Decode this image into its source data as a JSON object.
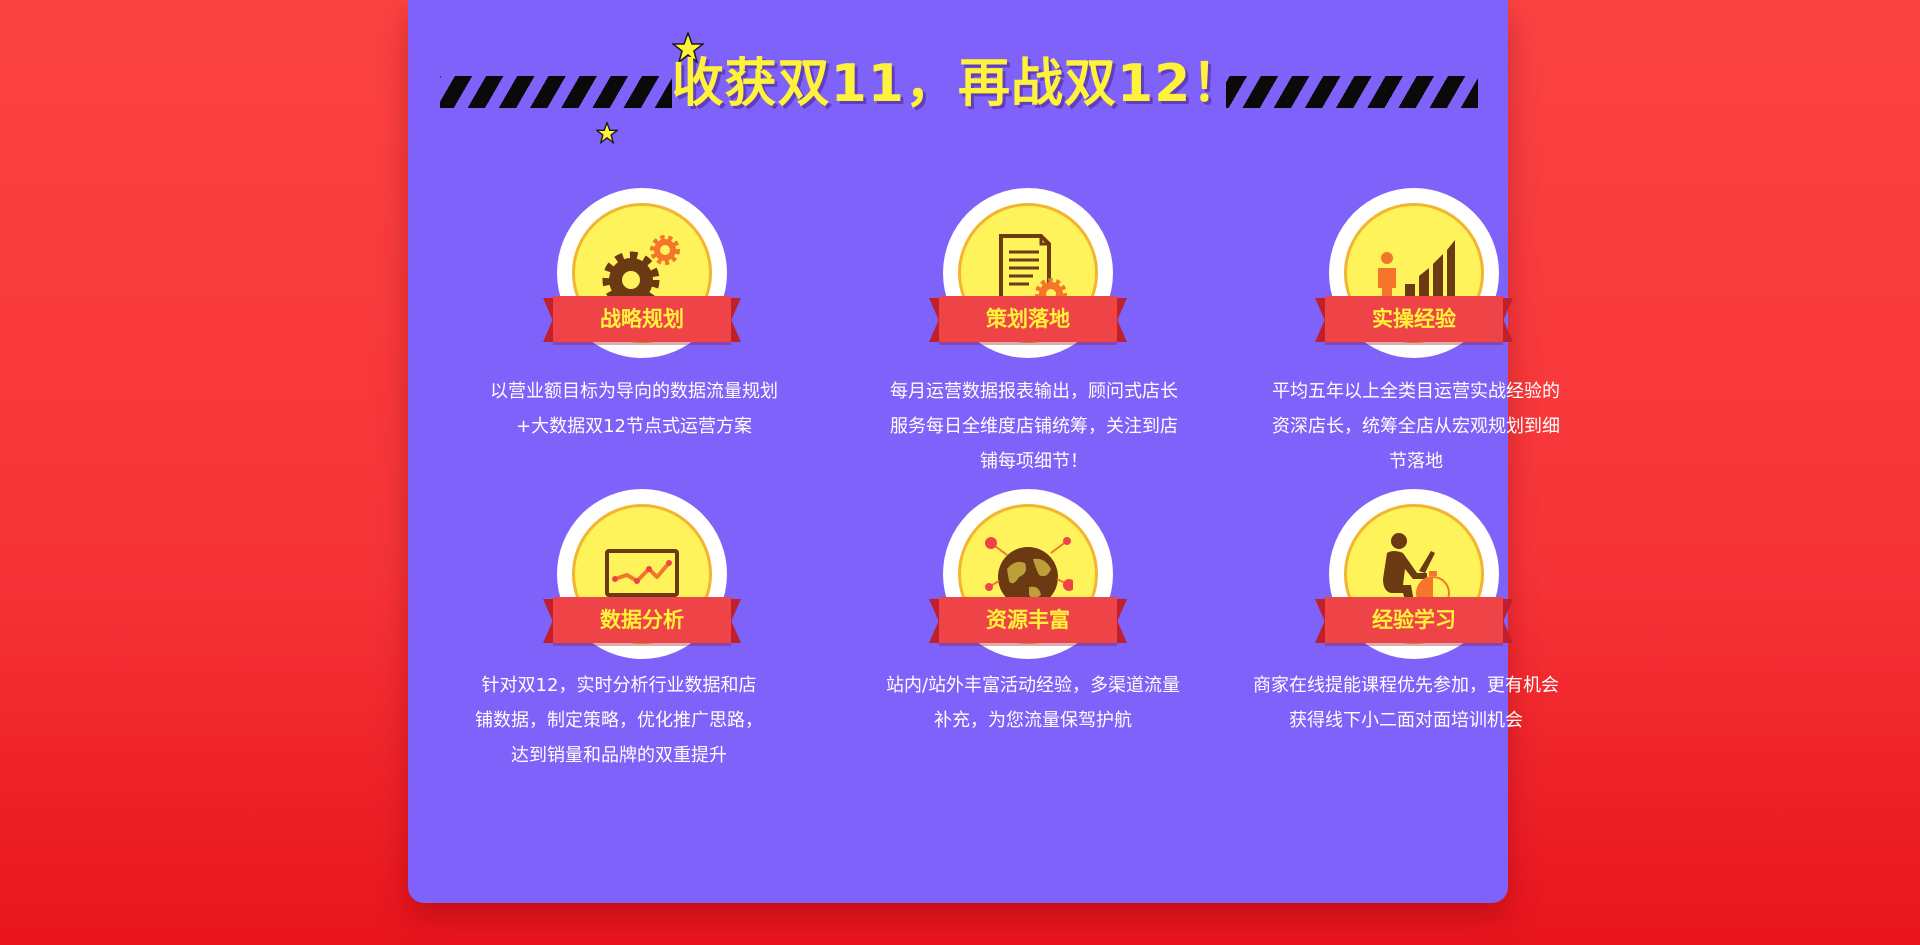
{
  "banner": {
    "headline": "收获双11，再战双12！"
  },
  "colors": {
    "page_background": "#f63438",
    "panel": "#7f62f9",
    "headline": "#fff23a",
    "medal_fill": "#fff35c",
    "ribbon": "#ef4447",
    "icon_dark": "#6b3a12",
    "icon_accent": "#f5762a"
  },
  "features": [
    {
      "icon": "gears-icon",
      "title": "战略规划",
      "description": "以营业额目标为导向的数据流量规划+大数据双12节点式运营方案"
    },
    {
      "icon": "document-gear-icon",
      "title": "策划落地",
      "description": "每月运营数据报表输出，顾问式店长服务每日全维度店铺统筹，关注到店铺每项细节！"
    },
    {
      "icon": "growth-chart-icon",
      "title": "实操经验",
      "description": "平均五年以上全类目运营实战经验的资深店长，统筹全店从宏观规划到细节落地"
    },
    {
      "icon": "laptop-chart-icon",
      "title": "数据分析",
      "description": "针对双12，实时分析行业数据和店铺数据，制定策略，优化推广思路，达到销量和品牌的双重提升"
    },
    {
      "icon": "globe-network-icon",
      "title": "资源丰富",
      "description": "站内/站外丰富活动经验，多渠道流量补充，为您流量保驾护航"
    },
    {
      "icon": "learner-clock-icon",
      "title": "经验学习",
      "description": "商家在线提能课程优先参加，更有机会获得线下小二面对面培训机会"
    }
  ]
}
